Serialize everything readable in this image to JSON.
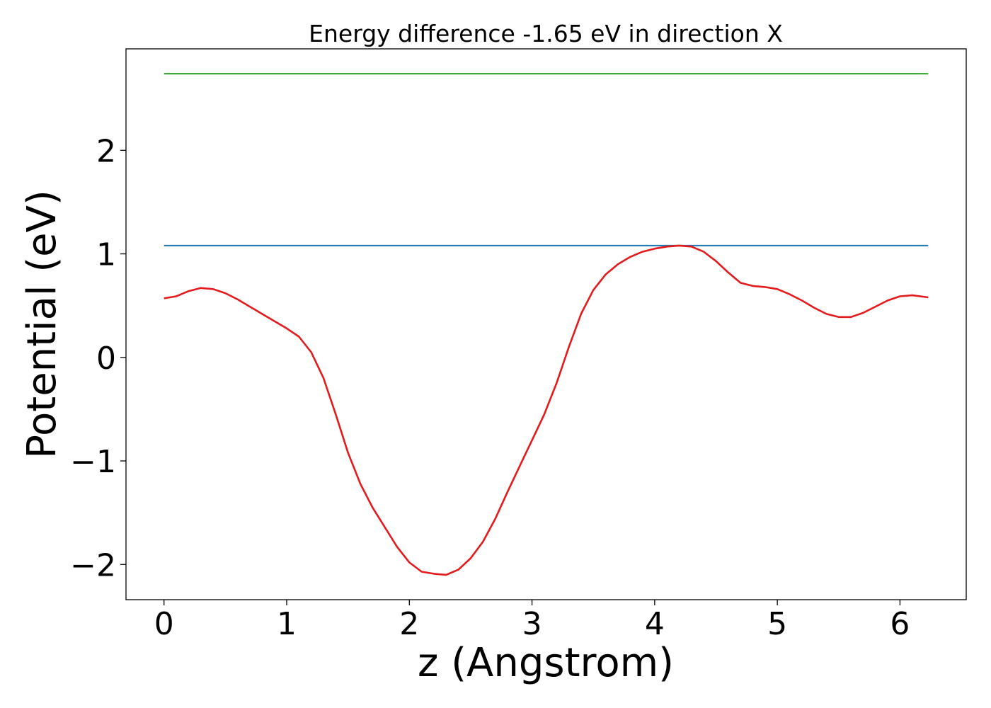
{
  "chart_data": {
    "type": "line",
    "title": "Energy difference -1.65 eV in direction X",
    "xlabel": "z (Angstrom)",
    "ylabel": "Potential (eV)",
    "xlim": [
      -0.31,
      6.54
    ],
    "ylim": [
      -2.34,
      2.98
    ],
    "x_ticks": [
      0,
      1,
      2,
      3,
      4,
      5,
      6
    ],
    "x_tick_labels": [
      "0",
      "1",
      "2",
      "3",
      "4",
      "5",
      "6"
    ],
    "y_ticks": [
      -2,
      -1,
      0,
      1,
      2
    ],
    "y_tick_labels": [
      "−2",
      "−1",
      "0",
      "1",
      "2"
    ],
    "grid": false,
    "series": [
      {
        "color": "#2ca02c",
        "x": [
          0,
          6.23
        ],
        "y": [
          2.74,
          2.74
        ]
      },
      {
        "color": "#1f77b4",
        "x": [
          0,
          6.23
        ],
        "y": [
          1.08,
          1.08
        ]
      },
      {
        "color": "#e41a1c",
        "x": [
          0,
          0.1,
          0.2,
          0.3,
          0.4,
          0.5,
          0.6,
          0.7,
          0.8,
          0.9,
          1.0,
          1.1,
          1.2,
          1.3,
          1.4,
          1.5,
          1.6,
          1.7,
          1.8,
          1.9,
          2.0,
          2.1,
          2.2,
          2.3,
          2.4,
          2.5,
          2.6,
          2.7,
          2.8,
          2.9,
          3.0,
          3.1,
          3.2,
          3.3,
          3.4,
          3.5,
          3.6,
          3.7,
          3.8,
          3.9,
          4.0,
          4.1,
          4.2,
          4.3,
          4.4,
          4.5,
          4.6,
          4.7,
          4.8,
          4.9,
          5.0,
          5.1,
          5.2,
          5.3,
          5.4,
          5.5,
          5.6,
          5.7,
          5.8,
          5.9,
          6.0,
          6.1,
          6.23
        ],
        "y": [
          0.57,
          0.59,
          0.64,
          0.67,
          0.66,
          0.62,
          0.56,
          0.49,
          0.42,
          0.35,
          0.28,
          0.2,
          0.05,
          -0.2,
          -0.55,
          -0.92,
          -1.22,
          -1.45,
          -1.64,
          -1.83,
          -1.98,
          -2.07,
          -2.09,
          -2.1,
          -2.05,
          -1.94,
          -1.78,
          -1.56,
          -1.3,
          -1.05,
          -0.8,
          -0.55,
          -0.25,
          0.1,
          0.42,
          0.65,
          0.8,
          0.9,
          0.97,
          1.02,
          1.05,
          1.07,
          1.08,
          1.07,
          1.02,
          0.93,
          0.82,
          0.72,
          0.69,
          0.68,
          0.66,
          0.61,
          0.55,
          0.48,
          0.42,
          0.39,
          0.39,
          0.43,
          0.49,
          0.55,
          0.59,
          0.6,
          0.58
        ]
      }
    ]
  }
}
